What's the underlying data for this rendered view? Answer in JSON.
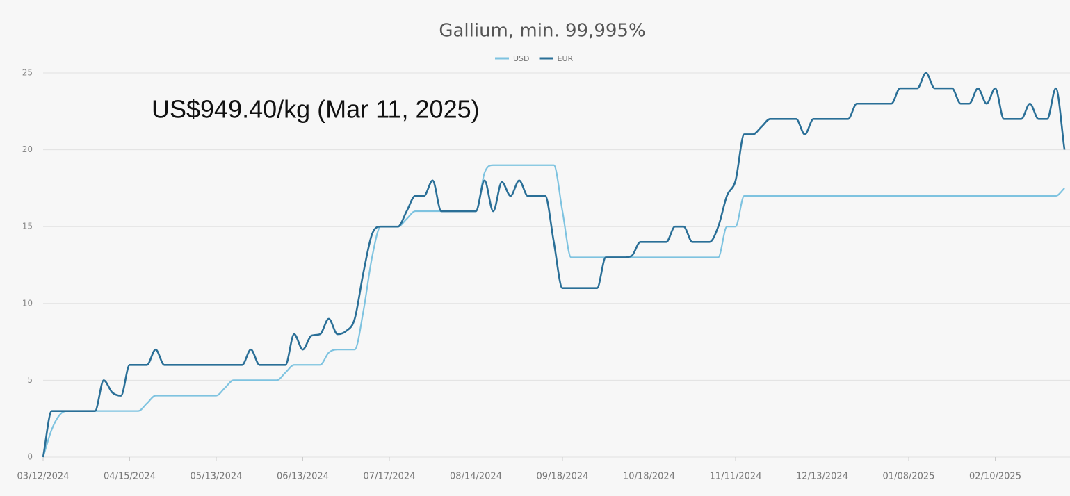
{
  "chart_data": {
    "type": "line",
    "title": "Gallium, min. 99,995%",
    "annotation": "US$949.40/kg (Mar 11, 2025)",
    "categories": [
      "03/12/2024",
      null,
      null,
      null,
      null,
      null,
      null,
      null,
      null,
      null,
      "04/15/2024",
      null,
      null,
      null,
      null,
      null,
      null,
      null,
      null,
      null,
      "05/13/2024",
      null,
      null,
      null,
      null,
      null,
      null,
      null,
      null,
      null,
      "06/13/2024",
      null,
      null,
      null,
      null,
      null,
      null,
      null,
      null,
      null,
      "07/17/2024",
      null,
      null,
      null,
      null,
      null,
      null,
      null,
      null,
      null,
      "08/14/2024",
      null,
      null,
      null,
      null,
      null,
      null,
      null,
      null,
      null,
      "09/18/2024",
      null,
      null,
      null,
      null,
      null,
      null,
      null,
      null,
      null,
      "10/18/2024",
      null,
      null,
      null,
      null,
      null,
      null,
      null,
      null,
      null,
      "11/11/2024",
      null,
      null,
      null,
      null,
      null,
      null,
      null,
      null,
      null,
      "12/13/2024",
      null,
      null,
      null,
      null,
      null,
      null,
      null,
      null,
      null,
      "01/08/2025",
      null,
      null,
      null,
      null,
      null,
      null,
      null,
      null,
      null,
      "02/10/2025",
      null,
      null,
      null,
      null,
      null,
      null,
      null,
      null
    ],
    "series": [
      {
        "name": "USD",
        "color": "#7ec3e0",
        "values": [
          0,
          1.8,
          2.8,
          3,
          3,
          3,
          3,
          3,
          3,
          3,
          3,
          3,
          3.5,
          4,
          4,
          4,
          4,
          4,
          4,
          4,
          4,
          4.5,
          5,
          5,
          5,
          5,
          5,
          5,
          5.5,
          6,
          6,
          6,
          6,
          6.8,
          7,
          7,
          7,
          9.5,
          13,
          15,
          15,
          15,
          15.5,
          16,
          16,
          16,
          16,
          16,
          16,
          16,
          16,
          18.5,
          19,
          19,
          19,
          19,
          19,
          19,
          19,
          19,
          16,
          13,
          13,
          13,
          13,
          13,
          13,
          13,
          13,
          13,
          13,
          13,
          13,
          13,
          13,
          13,
          13,
          13,
          13,
          15,
          15,
          17,
          17,
          17,
          17,
          17,
          17,
          17,
          17,
          17,
          17,
          17,
          17,
          17,
          17,
          17,
          17,
          17,
          17,
          17,
          17,
          17,
          17,
          17,
          17,
          17,
          17,
          17,
          17,
          17,
          17,
          17,
          17,
          17,
          17,
          17,
          17,
          17,
          17.5
        ]
      },
      {
        "name": "EUR",
        "color": "#2a6f97",
        "values": [
          0,
          3,
          3,
          3,
          3,
          3,
          3,
          5,
          4.2,
          4,
          6,
          6,
          6,
          7,
          6,
          6,
          6,
          6,
          6,
          6,
          6,
          6,
          6,
          6,
          7,
          6,
          6,
          6,
          6,
          8,
          7,
          7.9,
          8,
          9,
          8,
          8.2,
          9,
          12,
          14.5,
          15,
          15,
          15,
          16,
          17,
          17,
          18,
          16,
          16,
          16,
          16,
          16,
          18,
          16,
          17.9,
          17,
          18,
          17,
          17,
          17,
          14,
          11,
          11,
          11,
          11,
          11,
          13,
          13,
          13,
          13.1,
          14,
          14,
          14,
          14,
          15,
          15,
          14,
          14,
          14,
          15,
          17,
          18,
          21,
          21,
          21.5,
          22,
          22,
          22,
          22,
          21,
          22,
          22,
          22,
          22,
          22,
          23,
          23,
          23,
          23,
          23,
          24,
          24,
          24,
          25,
          24,
          24,
          24,
          23,
          23,
          24,
          23,
          24,
          22,
          22,
          22,
          23,
          22,
          22,
          24,
          20
        ]
      }
    ],
    "ylim": [
      0,
      25
    ],
    "yticks": [
      0,
      5,
      10,
      15,
      20,
      25
    ],
    "grid": true
  }
}
